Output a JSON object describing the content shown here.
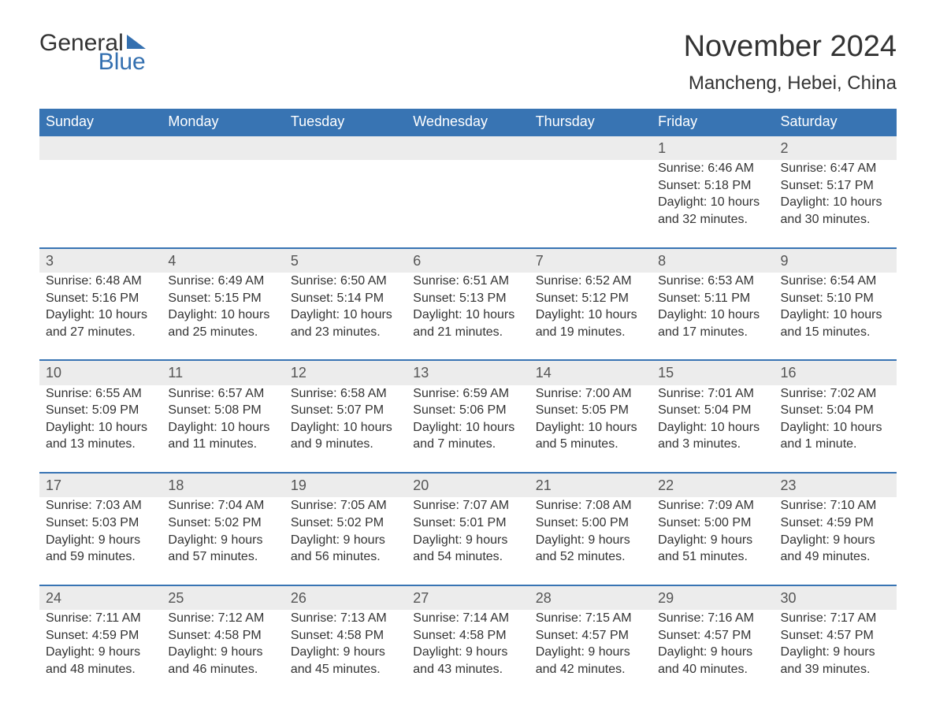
{
  "brand": {
    "word1": "General",
    "word2": "Blue",
    "color": "#3470b0"
  },
  "title": "November 2024",
  "location": "Mancheng, Hebei, China",
  "colors": {
    "header_bg": "#3874b3",
    "header_text": "#ffffff",
    "row_sep": "#3874b3",
    "daynum_bg": "#ececec",
    "text": "#333333",
    "page_bg": "#ffffff"
  },
  "layout": {
    "columns": 7,
    "start_day_index": 5,
    "days_in_month": 30,
    "title_fontsize": 38,
    "location_fontsize": 24,
    "header_fontsize": 18,
    "cell_fontsize": 16
  },
  "weekdays": [
    "Sunday",
    "Monday",
    "Tuesday",
    "Wednesday",
    "Thursday",
    "Friday",
    "Saturday"
  ],
  "days": [
    {
      "n": 1,
      "sunrise": "6:46 AM",
      "sunset": "5:18 PM",
      "daylight": "10 hours and 32 minutes."
    },
    {
      "n": 2,
      "sunrise": "6:47 AM",
      "sunset": "5:17 PM",
      "daylight": "10 hours and 30 minutes."
    },
    {
      "n": 3,
      "sunrise": "6:48 AM",
      "sunset": "5:16 PM",
      "daylight": "10 hours and 27 minutes."
    },
    {
      "n": 4,
      "sunrise": "6:49 AM",
      "sunset": "5:15 PM",
      "daylight": "10 hours and 25 minutes."
    },
    {
      "n": 5,
      "sunrise": "6:50 AM",
      "sunset": "5:14 PM",
      "daylight": "10 hours and 23 minutes."
    },
    {
      "n": 6,
      "sunrise": "6:51 AM",
      "sunset": "5:13 PM",
      "daylight": "10 hours and 21 minutes."
    },
    {
      "n": 7,
      "sunrise": "6:52 AM",
      "sunset": "5:12 PM",
      "daylight": "10 hours and 19 minutes."
    },
    {
      "n": 8,
      "sunrise": "6:53 AM",
      "sunset": "5:11 PM",
      "daylight": "10 hours and 17 minutes."
    },
    {
      "n": 9,
      "sunrise": "6:54 AM",
      "sunset": "5:10 PM",
      "daylight": "10 hours and 15 minutes."
    },
    {
      "n": 10,
      "sunrise": "6:55 AM",
      "sunset": "5:09 PM",
      "daylight": "10 hours and 13 minutes."
    },
    {
      "n": 11,
      "sunrise": "6:57 AM",
      "sunset": "5:08 PM",
      "daylight": "10 hours and 11 minutes."
    },
    {
      "n": 12,
      "sunrise": "6:58 AM",
      "sunset": "5:07 PM",
      "daylight": "10 hours and 9 minutes."
    },
    {
      "n": 13,
      "sunrise": "6:59 AM",
      "sunset": "5:06 PM",
      "daylight": "10 hours and 7 minutes."
    },
    {
      "n": 14,
      "sunrise": "7:00 AM",
      "sunset": "5:05 PM",
      "daylight": "10 hours and 5 minutes."
    },
    {
      "n": 15,
      "sunrise": "7:01 AM",
      "sunset": "5:04 PM",
      "daylight": "10 hours and 3 minutes."
    },
    {
      "n": 16,
      "sunrise": "7:02 AM",
      "sunset": "5:04 PM",
      "daylight": "10 hours and 1 minute."
    },
    {
      "n": 17,
      "sunrise": "7:03 AM",
      "sunset": "5:03 PM",
      "daylight": "9 hours and 59 minutes."
    },
    {
      "n": 18,
      "sunrise": "7:04 AM",
      "sunset": "5:02 PM",
      "daylight": "9 hours and 57 minutes."
    },
    {
      "n": 19,
      "sunrise": "7:05 AM",
      "sunset": "5:02 PM",
      "daylight": "9 hours and 56 minutes."
    },
    {
      "n": 20,
      "sunrise": "7:07 AM",
      "sunset": "5:01 PM",
      "daylight": "9 hours and 54 minutes."
    },
    {
      "n": 21,
      "sunrise": "7:08 AM",
      "sunset": "5:00 PM",
      "daylight": "9 hours and 52 minutes."
    },
    {
      "n": 22,
      "sunrise": "7:09 AM",
      "sunset": "5:00 PM",
      "daylight": "9 hours and 51 minutes."
    },
    {
      "n": 23,
      "sunrise": "7:10 AM",
      "sunset": "4:59 PM",
      "daylight": "9 hours and 49 minutes."
    },
    {
      "n": 24,
      "sunrise": "7:11 AM",
      "sunset": "4:59 PM",
      "daylight": "9 hours and 48 minutes."
    },
    {
      "n": 25,
      "sunrise": "7:12 AM",
      "sunset": "4:58 PM",
      "daylight": "9 hours and 46 minutes."
    },
    {
      "n": 26,
      "sunrise": "7:13 AM",
      "sunset": "4:58 PM",
      "daylight": "9 hours and 45 minutes."
    },
    {
      "n": 27,
      "sunrise": "7:14 AM",
      "sunset": "4:58 PM",
      "daylight": "9 hours and 43 minutes."
    },
    {
      "n": 28,
      "sunrise": "7:15 AM",
      "sunset": "4:57 PM",
      "daylight": "9 hours and 42 minutes."
    },
    {
      "n": 29,
      "sunrise": "7:16 AM",
      "sunset": "4:57 PM",
      "daylight": "9 hours and 40 minutes."
    },
    {
      "n": 30,
      "sunrise": "7:17 AM",
      "sunset": "4:57 PM",
      "daylight": "9 hours and 39 minutes."
    }
  ],
  "labels": {
    "sunrise": "Sunrise:",
    "sunset": "Sunset:",
    "daylight": "Daylight:"
  }
}
